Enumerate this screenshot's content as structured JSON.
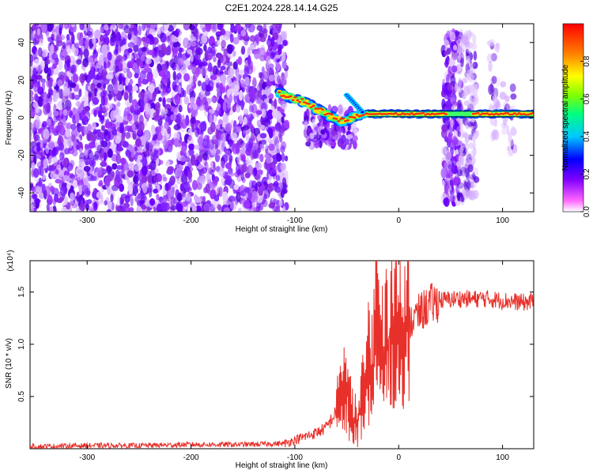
{
  "title": "C2E1.2024.228.14.14.G25",
  "chart_data": [
    {
      "type": "heatmap",
      "title": "C2E1.2024.228.14.14.G25",
      "xlabel": "Height of straight line (km)",
      "ylabel": "Frequency (Hz)",
      "xlim": [
        -355,
        130
      ],
      "ylim": [
        -50,
        50
      ],
      "xticks": [
        -300,
        -200,
        -100,
        0,
        100
      ],
      "yticks": [
        -40,
        -20,
        0,
        20,
        40
      ],
      "colorbar": {
        "label": "Normalized spectral amplitude",
        "range": [
          0,
          1
        ],
        "ticks": [
          "0.0",
          "0.2",
          "0.4",
          "0.6",
          "0.8"
        ],
        "colors": [
          "#ffffff",
          "#ff66ff",
          "#8000ff",
          "#0000ff",
          "#00c8ff",
          "#00ff80",
          "#80ff00",
          "#ffff00",
          "#ff8000",
          "#ff0000"
        ]
      },
      "signal_track": [
        {
          "x": -115,
          "y": 13
        },
        {
          "x": -100,
          "y": 10
        },
        {
          "x": -90,
          "y": 8
        },
        {
          "x": -80,
          "y": 5
        },
        {
          "x": -70,
          "y": 2
        },
        {
          "x": -55,
          "y": -2
        },
        {
          "x": -45,
          "y": 0
        },
        {
          "x": -30,
          "y": 2
        },
        {
          "x": -10,
          "y": 2
        },
        {
          "x": 0,
          "y": 2
        },
        {
          "x": 45,
          "y": 2
        },
        {
          "x": 130,
          "y": 2
        }
      ]
    },
    {
      "type": "line",
      "xlabel": "Height of straight line (km)",
      "ylabel": "SNR (10 * v/v)",
      "y_multiplier": "(x10⁴)",
      "xlim": [
        -355,
        130
      ],
      "ylim": [
        0,
        1.8
      ],
      "xticks": [
        -300,
        -200,
        -100,
        0,
        100
      ],
      "yticks": [
        "0.5",
        "1.0",
        "1.5"
      ],
      "line_color": "#e8302a",
      "x": [
        -355,
        -300,
        -250,
        -200,
        -150,
        -110,
        -95,
        -80,
        -70,
        -60,
        -55,
        -50,
        -45,
        -40,
        -35,
        -30,
        -25,
        -22,
        -20,
        -18,
        -15,
        -10,
        -5,
        0,
        5,
        10,
        20,
        30,
        40,
        50,
        60,
        70,
        80,
        90,
        100,
        110,
        120,
        130
      ],
      "y": [
        0.02,
        0.03,
        0.03,
        0.04,
        0.04,
        0.05,
        0.1,
        0.15,
        0.2,
        0.35,
        0.5,
        0.55,
        0.3,
        0.2,
        0.5,
        0.9,
        0.7,
        1.6,
        1.1,
        0.85,
        0.95,
        1.05,
        1.1,
        1.05,
        1.1,
        1.2,
        1.3,
        1.38,
        1.42,
        1.43,
        1.44,
        1.43,
        1.44,
        1.43,
        1.42,
        1.41,
        1.4,
        1.41
      ]
    }
  ]
}
